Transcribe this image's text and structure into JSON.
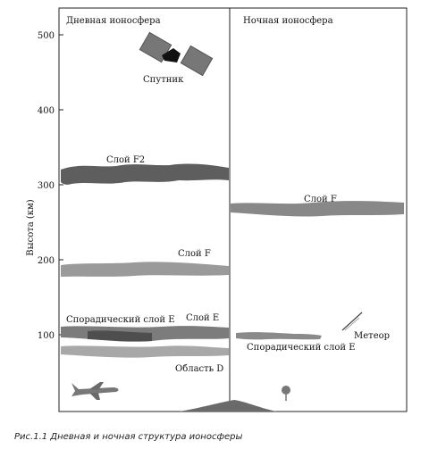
{
  "panels": {
    "day_title": "Дневная ионосфера",
    "night_title": "Ночная ионосфера"
  },
  "axis": {
    "ylabel": "Высота (км)",
    "ticks": [
      "500",
      "400",
      "300",
      "200",
      "100"
    ]
  },
  "labels": {
    "satellite": "Спутник",
    "f2": "Слой  F2",
    "f_day": "Слой F",
    "sporadic_e_day": "Спорадический слой Е",
    "e_day": "Слой Е",
    "d_region": "Область D",
    "f_night": "Слой F",
    "meteor": "Метеор",
    "sporadic_e_night": "Спорадический слой Е"
  },
  "caption": "Рис.1.1 Дневная и ночная структура ионосферы"
}
